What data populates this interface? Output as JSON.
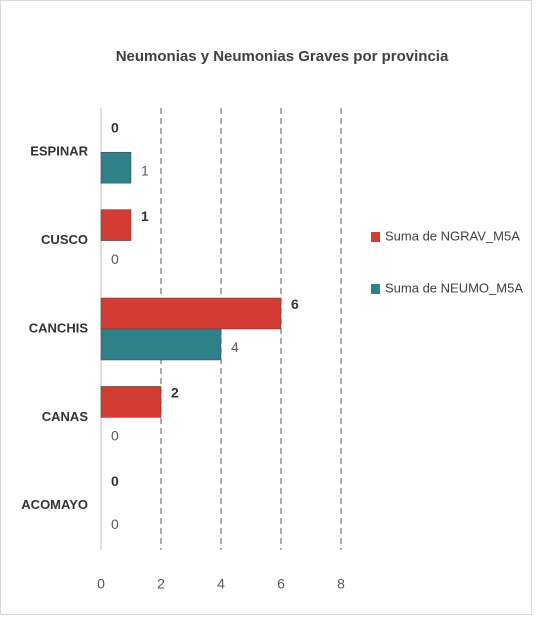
{
  "chart_data": {
    "type": "hbar",
    "title": "Neumonias y Neumonias Graves por provincia",
    "categories": [
      "ESPINAR",
      "CUSCO",
      "CANCHIS",
      "CANAS",
      "ACOMAYO"
    ],
    "series": [
      {
        "name": "Suma de NGRAV_M5A",
        "color": "#d23c33",
        "values": [
          0,
          1,
          6,
          2,
          0
        ]
      },
      {
        "name": "Suma de NEUMO_M5A",
        "color": "#2f8189",
        "values": [
          1,
          0,
          4,
          0,
          0
        ]
      }
    ],
    "xlim": [
      0,
      8
    ],
    "xticks": [
      0,
      2,
      4,
      6,
      8
    ],
    "grid": true,
    "legend": "right"
  }
}
